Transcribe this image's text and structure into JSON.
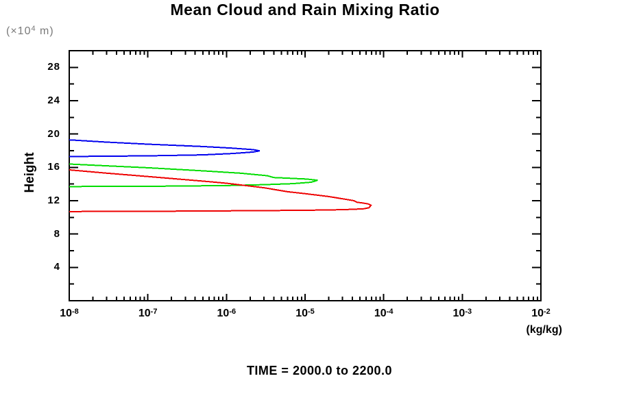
{
  "chart_data": {
    "type": "line",
    "title": "Mean Cloud and Rain Mixing Ratio",
    "ylabel": "Height",
    "y_units": {
      "pre": "(×10",
      "sup": "4",
      "post": " m)"
    },
    "xlabel": "(kg/kg)",
    "footer": "TIME = 2000.0 to 2200.0",
    "x_scale": "log",
    "xlim": [
      1e-08,
      0.01
    ],
    "ylim": [
      0,
      30
    ],
    "grid": false,
    "legend_position": "none",
    "tick_base": "10",
    "x_major_exponents": [
      -8,
      -7,
      -6,
      -5,
      -4,
      -3,
      -2
    ],
    "x_minor_multiples": [
      2,
      3,
      4,
      5,
      6,
      7,
      8,
      9
    ],
    "y_major_ticks": [
      4,
      8,
      12,
      16,
      20,
      24,
      28
    ],
    "y_minor_ticks": [
      2,
      6,
      10,
      14,
      18,
      22,
      26
    ],
    "axis_color": "#000000",
    "series": [
      {
        "name": "blue-profile",
        "color": "#0000ee",
        "points": [
          [
            1e-08,
            17.3
          ],
          [
            1e-07,
            17.38
          ],
          [
            5e-07,
            17.5
          ],
          [
            1.2e-06,
            17.66
          ],
          [
            2.2e-06,
            17.84
          ],
          [
            2.65e-06,
            17.98
          ],
          [
            2.2e-06,
            18.12
          ],
          [
            1.2e-06,
            18.3
          ],
          [
            5e-07,
            18.5
          ],
          [
            1e-07,
            18.78
          ],
          [
            3e-08,
            19.03
          ],
          [
            1e-08,
            19.3
          ]
        ]
      },
      {
        "name": "green-profile",
        "color": "#00dd00",
        "points": [
          [
            1e-08,
            13.7
          ],
          [
            1e-07,
            13.73
          ],
          [
            1e-06,
            13.82
          ],
          [
            3e-06,
            13.92
          ],
          [
            7e-06,
            14.05
          ],
          [
            1.2e-05,
            14.22
          ],
          [
            1.44e-05,
            14.45
          ],
          [
            1.05e-05,
            14.6
          ],
          [
            6e-06,
            14.7
          ],
          [
            4e-06,
            14.78
          ],
          [
            3.3e-06,
            15.0
          ],
          [
            1.5e-06,
            15.3
          ],
          [
            5e-07,
            15.58
          ],
          [
            1e-07,
            15.95
          ],
          [
            3e-08,
            16.18
          ],
          [
            1e-08,
            16.4
          ]
        ]
      },
      {
        "name": "red-profile",
        "color": "#ee0000",
        "points": [
          [
            1e-08,
            10.7
          ],
          [
            1e-07,
            10.73
          ],
          [
            1e-06,
            10.78
          ],
          [
            1e-05,
            10.85
          ],
          [
            3e-05,
            10.92
          ],
          [
            5.5e-05,
            11.02
          ],
          [
            6.5e-05,
            11.15
          ],
          [
            6.9e-05,
            11.45
          ],
          [
            6.3e-05,
            11.62
          ],
          [
            5.2e-05,
            11.75
          ],
          [
            4.6e-05,
            11.8
          ],
          [
            4.2e-05,
            12.0
          ],
          [
            2e-05,
            12.5
          ],
          [
            1e-05,
            12.85
          ],
          [
            6e-06,
            13.08
          ],
          [
            3e-06,
            13.55
          ],
          [
            1e-06,
            14.1
          ],
          [
            5e-07,
            14.35
          ],
          [
            1e-07,
            14.9
          ],
          [
            3e-08,
            15.3
          ],
          [
            1e-08,
            15.7
          ]
        ]
      }
    ]
  }
}
